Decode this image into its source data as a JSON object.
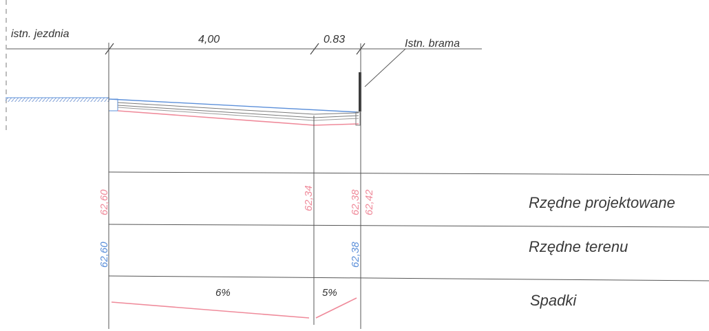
{
  "colors": {
    "line": "#5a5a5a",
    "design": "#ef8a9a",
    "terrain": "#5b8fd9",
    "hatch": "#7f9fd6",
    "gate": "#3a3a3a"
  },
  "labels": {
    "road": "istn. jezdnia",
    "gate": "Istn. brama",
    "dim_main": "4,00",
    "dim_small": "0.83"
  },
  "rows": {
    "design": "Rzędne projektowane",
    "terrain": "Rzędne terenu",
    "slopes": "Spadki"
  },
  "design_elevations": [
    "62,60",
    "62,34",
    "62,38",
    "62,42"
  ],
  "terrain_elevations": [
    "62,60",
    "62,38"
  ],
  "slopes": [
    "6%",
    "5%"
  ]
}
